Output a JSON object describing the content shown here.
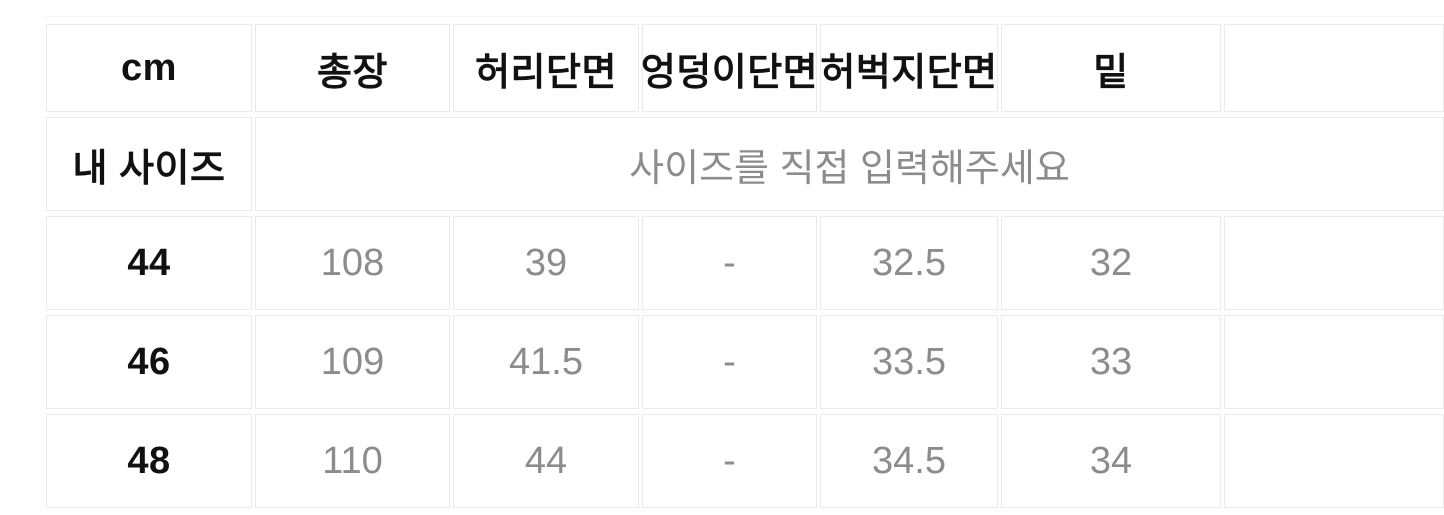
{
  "size_chart": {
    "header": {
      "unit": "cm",
      "cols": [
        "총장",
        "허리단면",
        "엉덩이단면",
        "허벅지단면",
        "밑"
      ]
    },
    "my_size": {
      "label": "내 사이즈",
      "placeholder": "사이즈를 직접 입력해주세요"
    },
    "rows": [
      {
        "size": "44",
        "values": [
          "108",
          "39",
          "-",
          "32.5",
          "32"
        ]
      },
      {
        "size": "46",
        "values": [
          "109",
          "41.5",
          "-",
          "33.5",
          "33"
        ]
      },
      {
        "size": "48",
        "values": [
          "110",
          "44",
          "-",
          "34.5",
          "34"
        ]
      }
    ],
    "colors": {
      "text_primary": "#111111",
      "text_muted": "#8c8c8c",
      "cell_border": "#ebebeb",
      "background": "#ffffff"
    }
  }
}
